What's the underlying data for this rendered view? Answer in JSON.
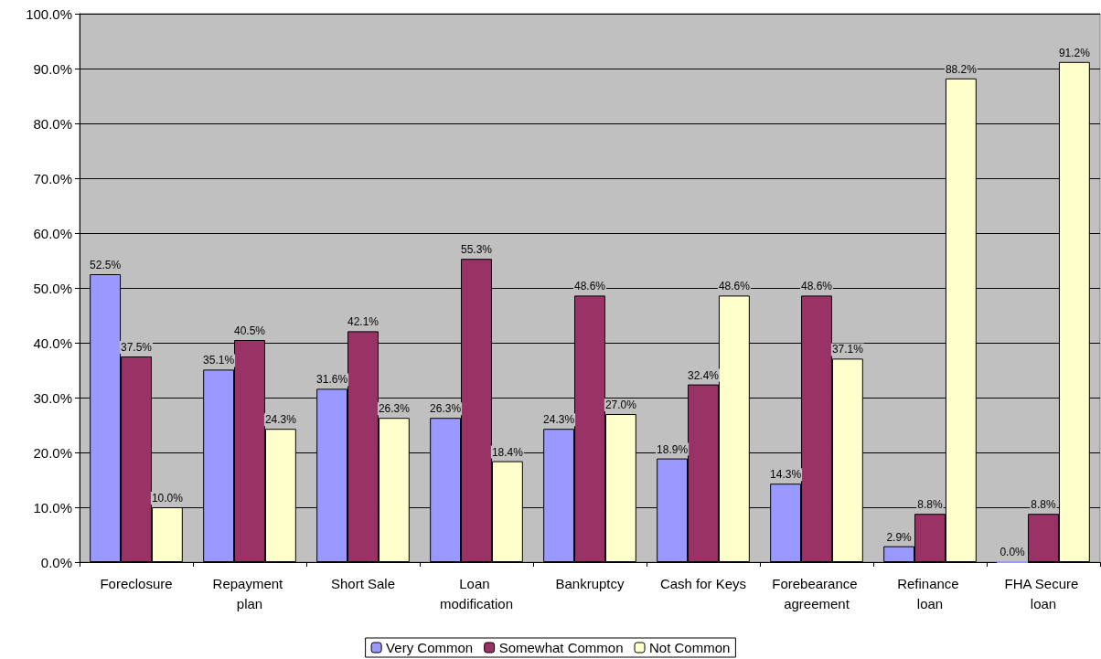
{
  "chart_data": {
    "type": "bar",
    "categories": [
      "Foreclosure",
      "Repayment plan",
      "Short Sale",
      "Loan modification",
      "Bankruptcy",
      "Cash for Keys",
      "Forebearance agreement",
      "Refinance loan",
      "FHA Secure loan"
    ],
    "series": [
      {
        "name": "Very Common",
        "color": "#9999ff",
        "values": [
          52.5,
          35.1,
          31.6,
          26.3,
          24.3,
          18.9,
          14.3,
          2.9,
          0.0
        ],
        "value_labels": [
          "52.5%",
          "35.1%",
          "31.6%",
          "26.3%",
          "24.3%",
          "18.9%",
          "14.3%",
          "2.9%",
          "0.0%"
        ]
      },
      {
        "name": "Somewhat Common",
        "color": "#993366",
        "values": [
          37.5,
          40.5,
          42.1,
          55.3,
          48.6,
          32.4,
          48.6,
          8.8,
          8.8
        ],
        "value_labels": [
          "37.5%",
          "40.5%",
          "42.1%",
          "55.3%",
          "48.6%",
          "32.4%",
          "48.6%",
          "8.8%",
          "8.8%"
        ]
      },
      {
        "name": "Not Common",
        "color": "#ffffcc",
        "values": [
          10.0,
          24.3,
          26.3,
          18.4,
          27.0,
          48.6,
          37.1,
          88.2,
          91.2
        ],
        "value_labels": [
          "10.0%",
          "24.3%",
          "26.3%",
          "18.4%",
          "27.0%",
          "48.6%",
          "37.1%",
          "88.2%",
          "91.2%"
        ]
      }
    ],
    "ylim": [
      0,
      100
    ],
    "yticks": [
      {
        "value": 0,
        "label": "0.0%"
      },
      {
        "value": 10,
        "label": "10.0%"
      },
      {
        "value": 20,
        "label": "20.0%"
      },
      {
        "value": 30,
        "label": "30.0%"
      },
      {
        "value": 40,
        "label": "40.0%"
      },
      {
        "value": 50,
        "label": "50.0%"
      },
      {
        "value": 60,
        "label": "60.0%"
      },
      {
        "value": 70,
        "label": "70.0%"
      },
      {
        "value": 80,
        "label": "80.0%"
      },
      {
        "value": 90,
        "label": "90.0%"
      },
      {
        "value": 100,
        "label": "100.0%"
      }
    ],
    "grid": "y",
    "legend": "bottom"
  }
}
